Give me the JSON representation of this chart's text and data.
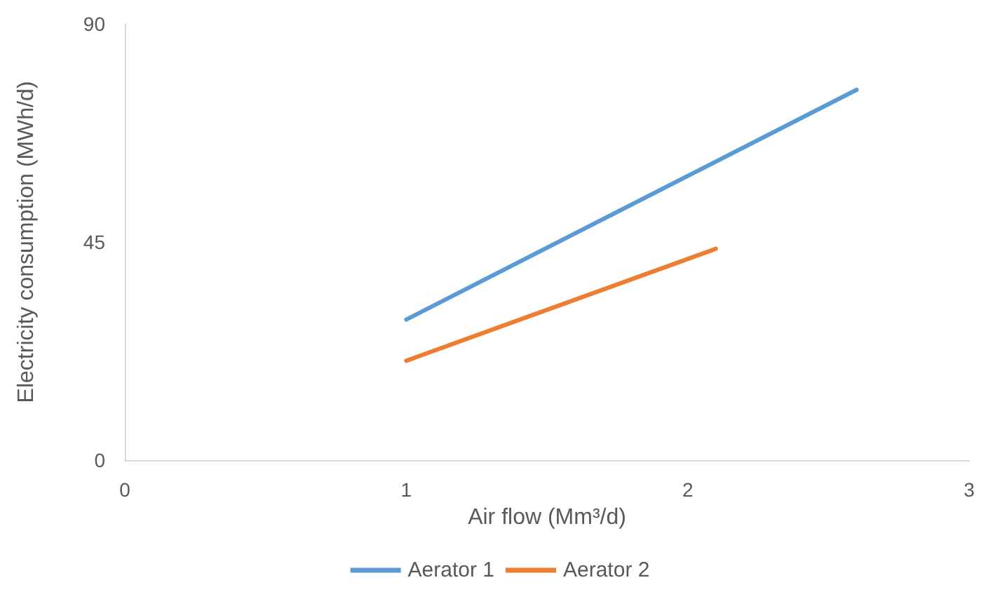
{
  "chart_data": {
    "type": "line",
    "xlabel": "Air flow (Mm³/d)",
    "ylabel": "Electricity consumption (MWh/d)",
    "xlim": [
      0,
      3
    ],
    "xticks": [
      0,
      1,
      2,
      3
    ],
    "ylim": [
      0,
      90
    ],
    "yticks": [
      0,
      45,
      90
    ],
    "grid": false,
    "legend": "bottom",
    "marker": "none",
    "series": [
      {
        "name": "Aerator 1",
        "color": "#5b9bd5",
        "x": [
          1,
          2.6
        ],
        "values": [
          29,
          76.4
        ]
      },
      {
        "name": "Aerator 2",
        "color": "#ed7d31",
        "x": [
          1,
          2.1
        ],
        "values": [
          20.5,
          43.6
        ]
      }
    ]
  }
}
